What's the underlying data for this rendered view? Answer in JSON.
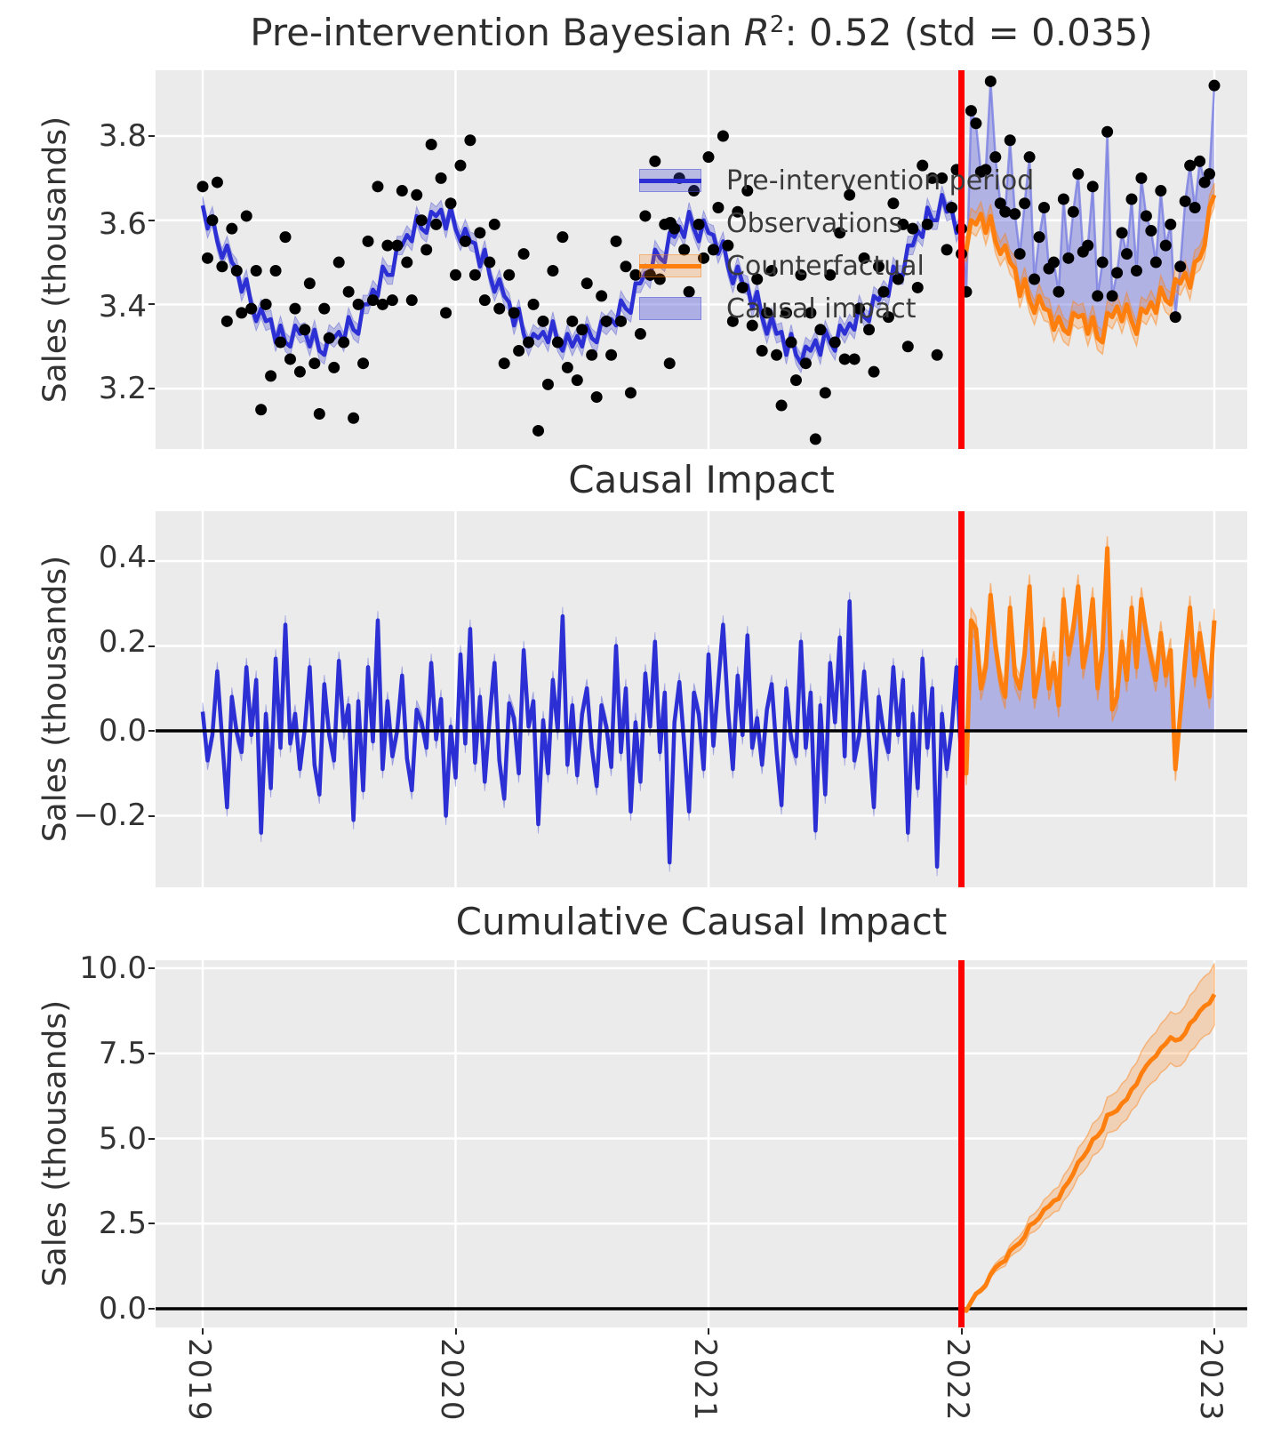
{
  "colors": {
    "panel_bg": "#ebebeb",
    "grid": "#ffffff",
    "blue": "#2b2fd4",
    "blue_band": "rgba(70,75,210,0.30)",
    "impact_fill": "rgba(95,100,220,0.42)",
    "impact_edge": "rgba(110,115,225,0.70)",
    "orange": "#ff7f0e",
    "orange_band": "rgba(255,127,14,0.24)",
    "orange_band_edge": "rgba(255,127,14,0.45)",
    "red": "#ff0000",
    "black": "#000000",
    "text": "#333333"
  },
  "titles": {
    "panel1_prefix": "Pre-intervention Bayesian ",
    "panel1_stat": "R",
    "panel1_sup": "2",
    "panel1_suffix": ": 0.52 (std = 0.035)",
    "panel2": "Causal Impact",
    "panel3": "Cumulative Causal Impact"
  },
  "axes": {
    "ylabel": "Sales (thousands)",
    "panel1_yticks": [
      "3.8",
      "3.6",
      "3.4",
      "3.2"
    ],
    "panel2_yticks": [
      "0.4",
      "0.2",
      "0.0",
      "−0.2"
    ],
    "panel3_yticks": [
      "10.0",
      "7.5",
      "5.0",
      "2.5",
      "0.0"
    ],
    "xticks": [
      "2019",
      "2020",
      "2021",
      "2022",
      "2023"
    ]
  },
  "legend": {
    "items": [
      {
        "label": "Pre-intervention period",
        "type": "line_band_blue"
      },
      {
        "label": "Observations",
        "type": "dot"
      },
      {
        "label": "Counterfactual",
        "type": "line_band_orange"
      },
      {
        "label": "Causal impact",
        "type": "patch"
      }
    ]
  },
  "chart_data": {
    "type": "line",
    "x_start": 2019,
    "x_step_years": 0.01923,
    "intervention_x": 2022,
    "panel1": {
      "title": "Pre-intervention Bayesian R^2: 0.52 (std = 0.035)",
      "ylabel": "Sales (thousands)",
      "ylim": [
        3.06,
        3.96
      ],
      "grid": true
    },
    "panel2": {
      "title": "Causal Impact",
      "ylabel": "Sales (thousands)",
      "ylim": [
        -0.37,
        0.52
      ],
      "grid": true
    },
    "panel3": {
      "title": "Cumulative Causal Impact",
      "ylabel": "Sales (thousands)",
      "ylim": [
        -0.55,
        10.24
      ],
      "grid": true
    },
    "pre_band_halfwidth": 0.022,
    "counterfactual_band_halfwidth": 0.028,
    "cumulative_band_slope_per_week": 0.0175,
    "pre_mean": [
      3.635,
      3.58,
      3.61,
      3.55,
      3.51,
      3.54,
      3.5,
      3.485,
      3.43,
      3.46,
      3.4,
      3.36,
      3.39,
      3.36,
      3.365,
      3.31,
      3.35,
      3.31,
      3.3,
      3.35,
      3.33,
      3.335,
      3.3,
      3.34,
      3.29,
      3.28,
      3.33,
      3.32,
      3.335,
      3.31,
      3.37,
      3.34,
      3.33,
      3.4,
      3.4,
      3.435,
      3.42,
      3.49,
      3.47,
      3.47,
      3.54,
      3.54,
      3.565,
      3.55,
      3.61,
      3.58,
      3.57,
      3.62,
      3.61,
      3.625,
      3.58,
      3.63,
      3.58,
      3.55,
      3.58,
      3.55,
      3.545,
      3.49,
      3.53,
      3.47,
      3.43,
      3.46,
      3.42,
      3.405,
      3.35,
      3.39,
      3.33,
      3.3,
      3.33,
      3.32,
      3.335,
      3.31,
      3.36,
      3.31,
      3.29,
      3.33,
      3.3,
      3.325,
      3.3,
      3.35,
      3.32,
      3.31,
      3.36,
      3.35,
      3.365,
      3.35,
      3.41,
      3.39,
      3.38,
      3.45,
      3.45,
      3.475,
      3.46,
      3.53,
      3.51,
      3.5,
      3.57,
      3.56,
      3.585,
      3.56,
      3.62,
      3.58,
      3.55,
      3.6,
      3.57,
      3.565,
      3.52,
      3.55,
      3.49,
      3.45,
      3.49,
      3.45,
      3.445,
      3.39,
      3.43,
      3.37,
      3.33,
      3.37,
      3.33,
      3.335,
      3.28,
      3.33,
      3.28,
      3.26,
      3.3,
      3.29,
      3.315,
      3.28,
      3.34,
      3.31,
      3.29,
      3.35,
      3.33,
      3.355,
      3.34,
      3.4,
      3.37,
      3.36,
      3.42,
      3.41,
      3.435,
      3.42,
      3.49,
      3.47,
      3.47,
      3.54,
      3.54,
      3.575,
      3.56,
      3.63,
      3.6,
      3.6,
      3.66,
      3.62,
      3.625,
      3.57,
      3.6
    ],
    "observations_pre": [
      3.68,
      3.51,
      3.6,
      3.69,
      3.49,
      3.36,
      3.58,
      3.48,
      3.38,
      3.61,
      3.39,
      3.48,
      3.15,
      3.4,
      3.23,
      3.48,
      3.31,
      3.56,
      3.27,
      3.39,
      3.24,
      3.34,
      3.45,
      3.26,
      3.14,
      3.39,
      3.32,
      3.25,
      3.5,
      3.31,
      3.43,
      3.13,
      3.4,
      3.26,
      3.55,
      3.41,
      3.68,
      3.4,
      3.54,
      3.41,
      3.54,
      3.67,
      3.5,
      3.41,
      3.66,
      3.6,
      3.53,
      3.78,
      3.59,
      3.7,
      3.38,
      3.64,
      3.47,
      3.73,
      3.55,
      3.79,
      3.47,
      3.57,
      3.41,
      3.5,
      3.59,
      3.39,
      3.26,
      3.47,
      3.38,
      3.29,
      3.52,
      3.31,
      3.4,
      3.1,
      3.36,
      3.21,
      3.48,
      3.31,
      3.56,
      3.25,
      3.36,
      3.22,
      3.34,
      3.45,
      3.28,
      3.18,
      3.42,
      3.36,
      3.28,
      3.55,
      3.36,
      3.49,
      3.19,
      3.47,
      3.33,
      3.61,
      3.47,
      3.74,
      3.46,
      3.59,
      3.26,
      3.58,
      3.7,
      3.53,
      3.43,
      3.67,
      3.59,
      3.51,
      3.75,
      3.53,
      3.63,
      3.8,
      3.54,
      3.36,
      3.62,
      3.44,
      3.67,
      3.35,
      3.46,
      3.29,
      3.38,
      3.48,
      3.28,
      3.16,
      3.38,
      3.31,
      3.22,
      3.47,
      3.26,
      3.38,
      3.08,
      3.34,
      3.19,
      3.47,
      3.31,
      3.57,
      3.27,
      3.66,
      3.27,
      3.39,
      3.51,
      3.34,
      3.24,
      3.49,
      3.43,
      3.37,
      3.64,
      3.46,
      3.59,
      3.3,
      3.58,
      3.44,
      3.73,
      3.59,
      3.7,
      3.28,
      3.7,
      3.53,
      3.63,
      3.72,
      3.52
    ],
    "counterfactual_mean": [
      3.54,
      3.53,
      3.6,
      3.59,
      3.615,
      3.57,
      3.61,
      3.55,
      3.52,
      3.54,
      3.5,
      3.485,
      3.42,
      3.46,
      3.41,
      3.38,
      3.42,
      3.39,
      3.385,
      3.34,
      3.37,
      3.34,
      3.33,
      3.38,
      3.37,
      3.375,
      3.33,
      3.37,
      3.32,
      3.31,
      3.38,
      3.37,
      3.395,
      3.36,
      3.4,
      3.36,
      3.33,
      3.39,
      3.38,
      3.405,
      3.38,
      3.44,
      3.41,
      3.4,
      3.46,
      3.45,
      3.475,
      3.44,
      3.5,
      3.51,
      3.54,
      3.63,
      3.66
    ],
    "impact_post": [
      0.04,
      -0.1,
      0.26,
      0.24,
      0.1,
      0.15,
      0.32,
      0.2,
      0.12,
      0.08,
      0.29,
      0.13,
      0.1,
      0.18,
      0.34,
      0.08,
      0.14,
      0.24,
      0.1,
      0.16,
      0.06,
      0.31,
      0.18,
      0.24,
      0.34,
      0.15,
      0.21,
      0.31,
      0.1,
      0.19,
      0.43,
      0.05,
      0.08,
      0.21,
      0.12,
      0.29,
      0.15,
      0.31,
      0.23,
      0.17,
      0.12,
      0.23,
      0.13,
      0.19,
      -0.09,
      0.04,
      0.17,
      0.29,
      0.13,
      0.23,
      0.15,
      0.08,
      0.26
    ]
  }
}
